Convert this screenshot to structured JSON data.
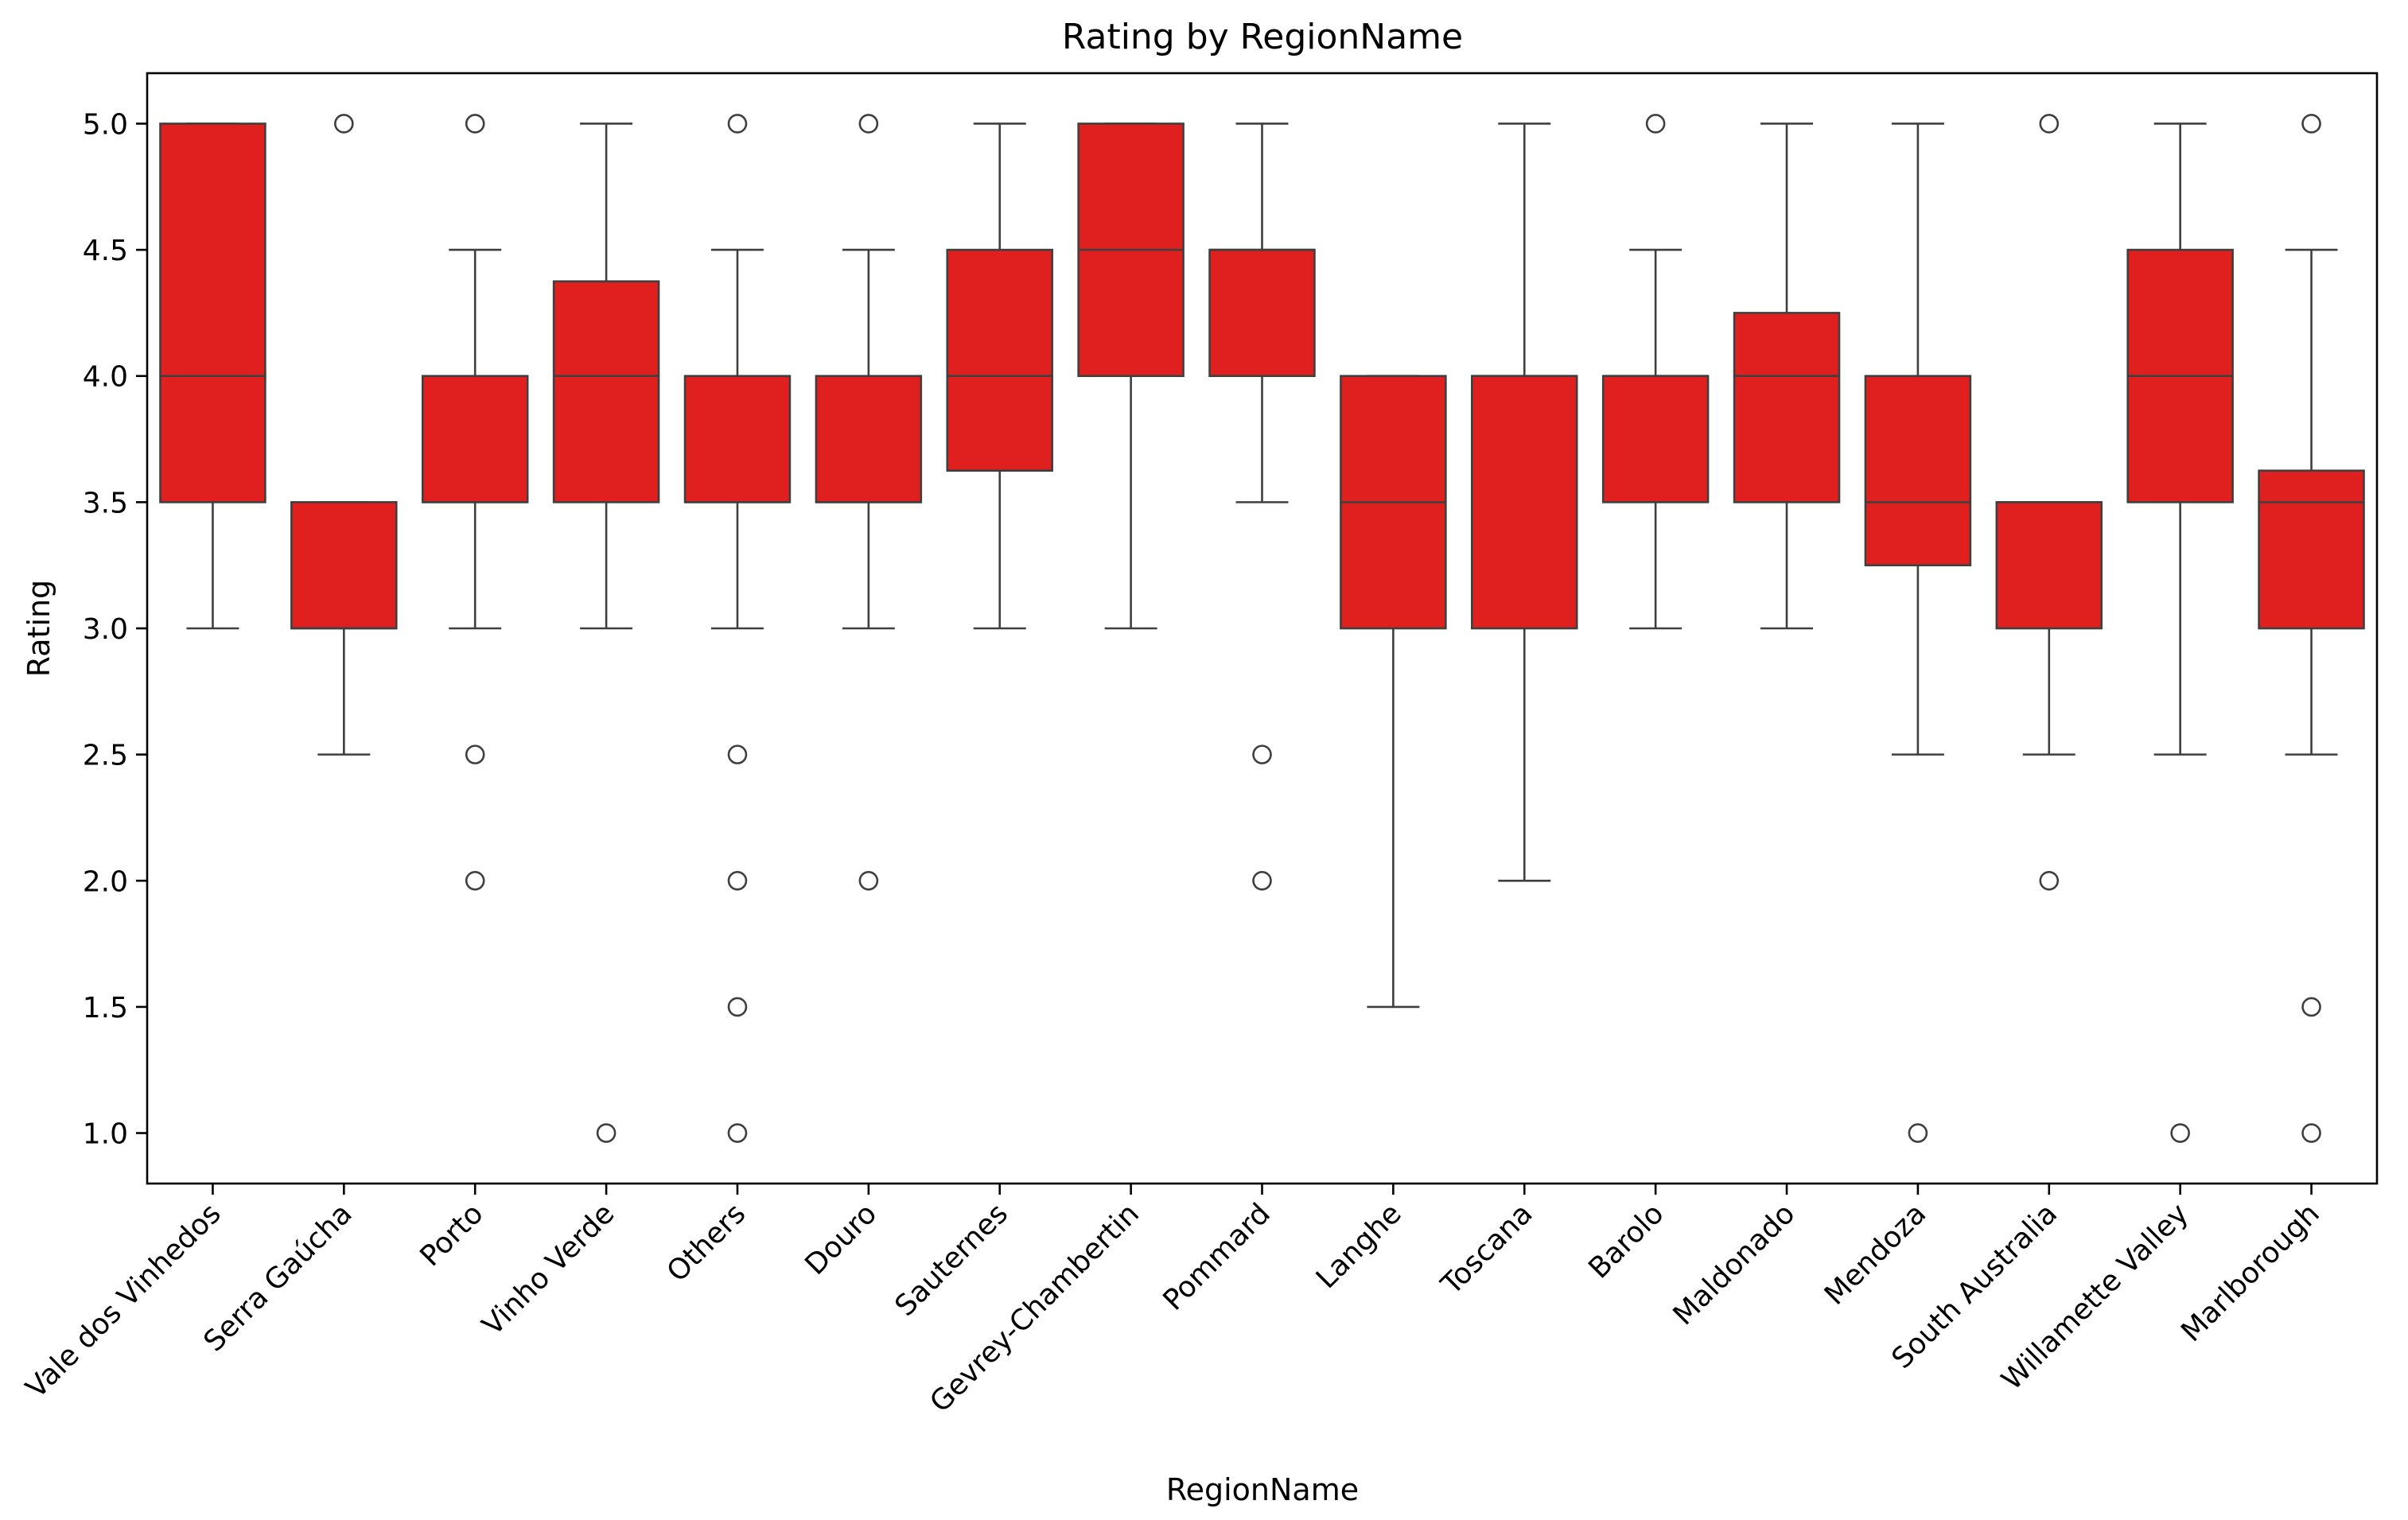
{
  "chart_data": {
    "type": "box",
    "title": "Rating by RegionName",
    "xlabel": "RegionName",
    "ylabel": "Rating",
    "ylim": [
      0.8,
      5.2
    ],
    "yticks": [
      "1.0",
      "1.5",
      "2.0",
      "2.5",
      "3.0",
      "3.5",
      "4.0",
      "4.5",
      "5.0"
    ],
    "grid": false,
    "legend": "none",
    "box_color": "#e0201f",
    "line_color": "#3f3f3f",
    "categories": [
      "Vale dos Vinhedos",
      "Serra Gaúcha",
      "Porto",
      "Vinho Verde",
      "Others",
      "Douro",
      "Sauternes",
      "Gevrey-Chambertin",
      "Pommard",
      "Langhe",
      "Toscana",
      "Barolo",
      "Maldonado",
      "Mendoza",
      "South Australia",
      "Willamette Valley",
      "Marlborough"
    ],
    "boxes": [
      {
        "whislo": 3.0,
        "q1": 3.5,
        "med": 4.0,
        "q3": 5.0,
        "whishi": 5.0,
        "fliers": []
      },
      {
        "whislo": 2.5,
        "q1": 3.0,
        "med": 3.0,
        "q3": 3.5,
        "whishi": 3.5,
        "fliers": [
          5.0
        ]
      },
      {
        "whislo": 3.0,
        "q1": 3.5,
        "med": 3.5,
        "q3": 4.0,
        "whishi": 4.5,
        "fliers": [
          5.0,
          2.5,
          2.0
        ]
      },
      {
        "whislo": 3.0,
        "q1": 3.5,
        "med": 4.0,
        "q3": 4.375,
        "whishi": 5.0,
        "fliers": [
          1.0
        ]
      },
      {
        "whislo": 3.0,
        "q1": 3.5,
        "med": 3.5,
        "q3": 4.0,
        "whishi": 4.5,
        "fliers": [
          5.0,
          2.5,
          2.0,
          1.5,
          1.0
        ]
      },
      {
        "whislo": 3.0,
        "q1": 3.5,
        "med": 3.5,
        "q3": 4.0,
        "whishi": 4.5,
        "fliers": [
          5.0,
          2.0
        ]
      },
      {
        "whislo": 3.0,
        "q1": 3.625,
        "med": 4.0,
        "q3": 4.5,
        "whishi": 5.0,
        "fliers": []
      },
      {
        "whislo": 3.0,
        "q1": 4.0,
        "med": 4.5,
        "q3": 5.0,
        "whishi": 5.0,
        "fliers": []
      },
      {
        "whislo": 3.5,
        "q1": 4.0,
        "med": 4.5,
        "q3": 4.5,
        "whishi": 5.0,
        "fliers": [
          2.5,
          2.0
        ]
      },
      {
        "whislo": 1.5,
        "q1": 3.0,
        "med": 3.5,
        "q3": 4.0,
        "whishi": 4.0,
        "fliers": []
      },
      {
        "whislo": 2.0,
        "q1": 3.0,
        "med": 4.0,
        "q3": 4.0,
        "whishi": 5.0,
        "fliers": []
      },
      {
        "whislo": 3.0,
        "q1": 3.5,
        "med": 4.0,
        "q3": 4.0,
        "whishi": 4.5,
        "fliers": [
          5.0
        ]
      },
      {
        "whislo": 3.0,
        "q1": 3.5,
        "med": 4.0,
        "q3": 4.25,
        "whishi": 5.0,
        "fliers": []
      },
      {
        "whislo": 2.5,
        "q1": 3.25,
        "med": 3.5,
        "q3": 4.0,
        "whishi": 5.0,
        "fliers": [
          1.0
        ]
      },
      {
        "whislo": 2.5,
        "q1": 3.0,
        "med": 3.5,
        "q3": 3.5,
        "whishi": 3.5,
        "fliers": [
          5.0,
          2.0
        ]
      },
      {
        "whislo": 2.5,
        "q1": 3.5,
        "med": 4.0,
        "q3": 4.5,
        "whishi": 5.0,
        "fliers": [
          1.0
        ]
      },
      {
        "whislo": 2.5,
        "q1": 3.0,
        "med": 3.5,
        "q3": 3.625,
        "whishi": 4.5,
        "fliers": [
          5.0,
          1.5,
          1.0
        ]
      }
    ]
  }
}
